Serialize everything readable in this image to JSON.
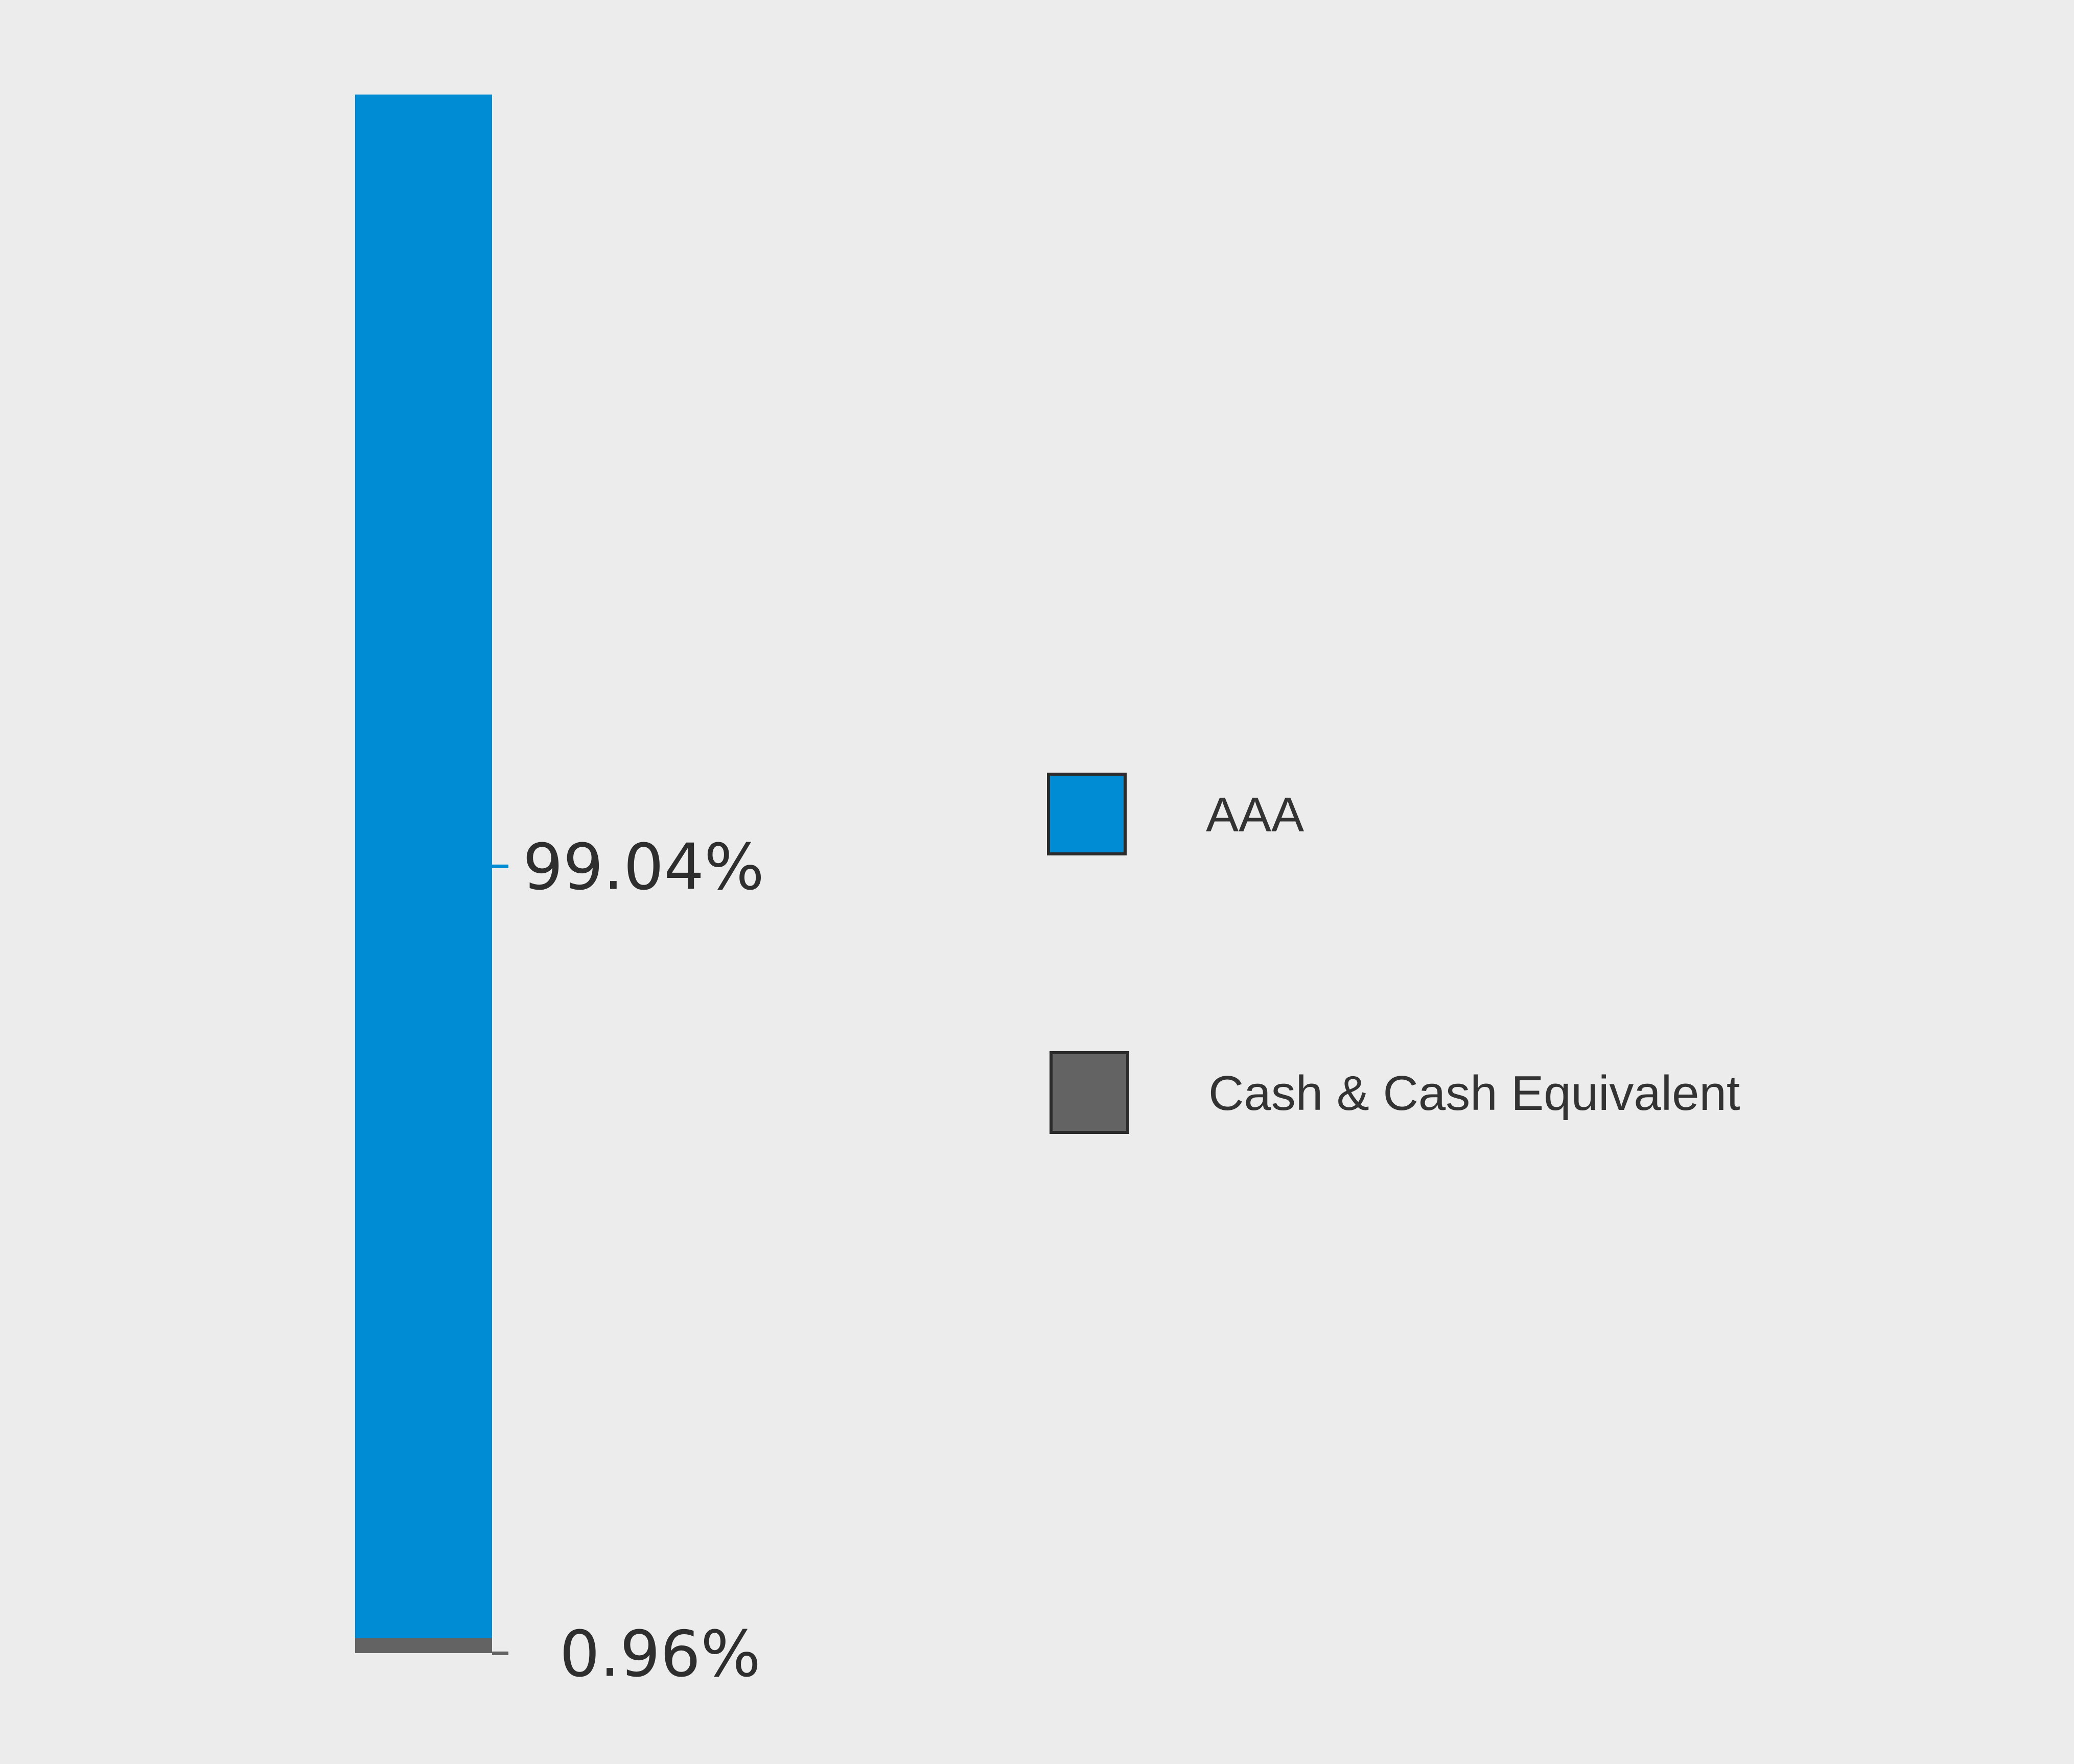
{
  "chart_data": {
    "type": "bar",
    "stacked": true,
    "title": "",
    "xlabel": "",
    "ylabel": "",
    "ylim": [
      0,
      100
    ],
    "grid": false,
    "legend_position": "right",
    "series": [
      {
        "name": "AAA",
        "values": [
          99.04
        ],
        "label": "99.04%",
        "color": "#008bd5"
      },
      {
        "name": "Cash & Cash Equivalent",
        "values": [
          0.96
        ],
        "label": "0.96%",
        "color": "#636363"
      }
    ]
  },
  "colors": {
    "background": "#ebeceb",
    "legend_border": "#2b2b2b"
  }
}
